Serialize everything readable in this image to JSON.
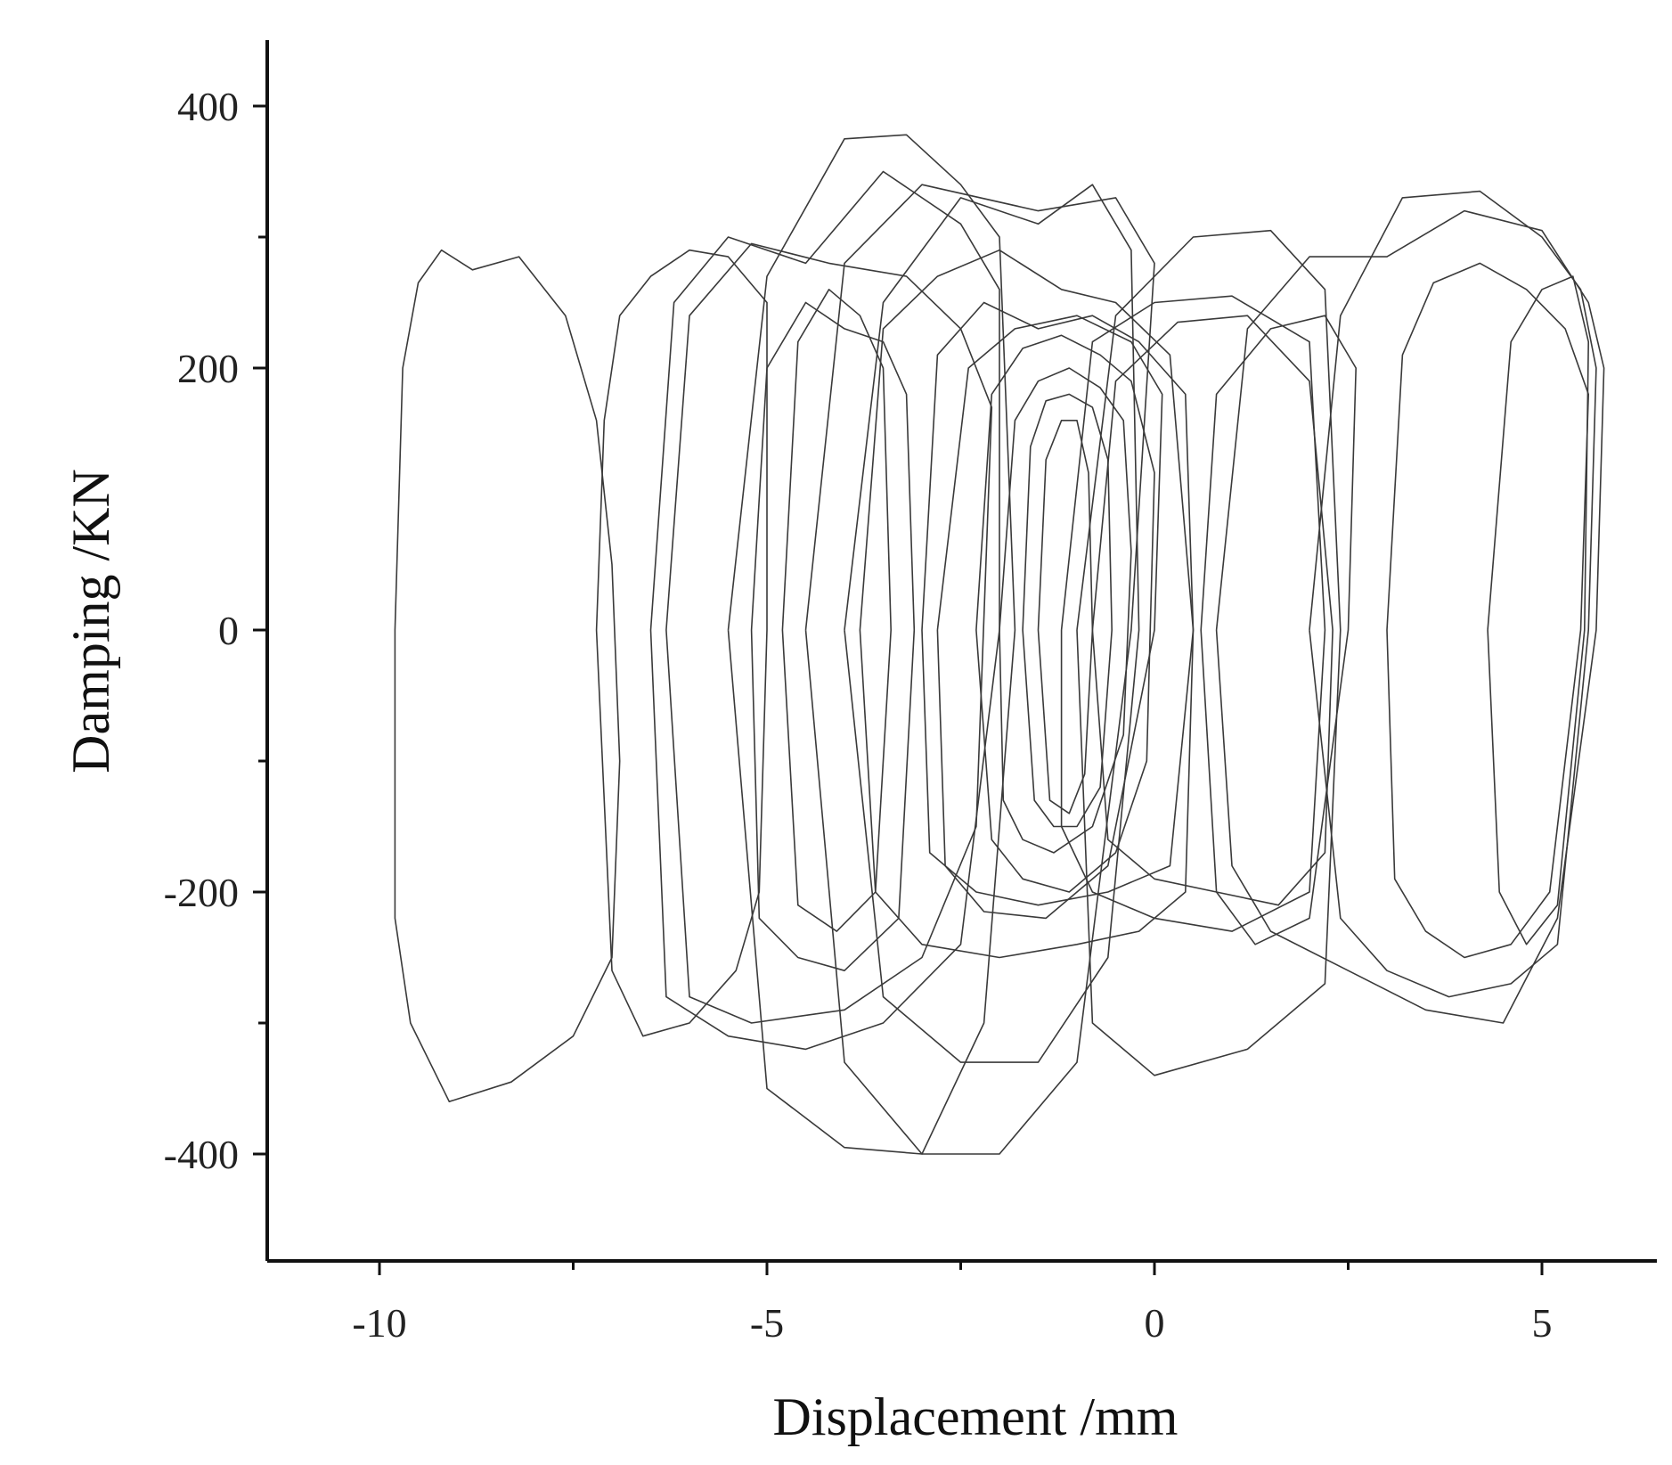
{
  "chart_data": {
    "type": "line",
    "title": "",
    "xlabel": "Displacement /mm",
    "ylabel": "Damping /KN",
    "xlim": [
      -12,
      6.5
    ],
    "ylim": [
      -475,
      450
    ],
    "x_ticks": [
      -10,
      -5,
      0,
      5
    ],
    "x_tick_labels": [
      "-10",
      "-5",
      "0",
      "5"
    ],
    "x_minor_ticks": [
      -7.5,
      -2.5,
      2.5
    ],
    "y_ticks": [
      400,
      200,
      0,
      -200,
      -400
    ],
    "y_tick_labels": [
      "400",
      "200",
      "0",
      "-200",
      "-400"
    ],
    "y_minor_ticks": [
      300,
      -100,
      -300
    ],
    "grid": false,
    "legend": "none",
    "line_color": "#3a3a3a",
    "series": [
      {
        "x": [
          -9.8,
          -9.7,
          -9.5,
          -9.2,
          -8.8,
          -8.2,
          -7.6,
          -7.2,
          -7.0,
          -6.9,
          -7.0,
          -7.5,
          -8.3,
          -9.1,
          -9.6,
          -9.8,
          -9.8
        ],
        "y": [
          0,
          200,
          265,
          290,
          275,
          285,
          240,
          160,
          50,
          -100,
          -250,
          -310,
          -345,
          -360,
          -300,
          -220,
          0
        ]
      },
      {
        "x": [
          -7.2,
          -7.1,
          -6.9,
          -6.5,
          -6.0,
          -5.5,
          -5.0,
          -5.0,
          -5.1,
          -5.4,
          -6.0,
          -6.6,
          -7.0,
          -7.2
        ],
        "y": [
          0,
          160,
          240,
          270,
          290,
          285,
          250,
          0,
          -200,
          -260,
          -300,
          -310,
          -260,
          0
        ]
      },
      {
        "x": [
          -6.5,
          -6.2,
          -5.5,
          -4.5,
          -3.5,
          -2.5,
          -2.0,
          -2.0,
          -2.5,
          -3.5,
          -4.5,
          -5.5,
          -6.3,
          -6.5
        ],
        "y": [
          0,
          250,
          300,
          280,
          350,
          310,
          260,
          0,
          -240,
          -300,
          -320,
          -310,
          -280,
          0
        ]
      },
      {
        "x": [
          -5.2,
          -5.0,
          -4.5,
          -4.0,
          -3.5,
          -3.2,
          -3.1,
          -3.3,
          -4.0,
          -4.6,
          -5.1,
          -5.2
        ],
        "y": [
          0,
          200,
          250,
          230,
          220,
          180,
          0,
          -220,
          -260,
          -250,
          -220,
          0
        ]
      },
      {
        "x": [
          -4.8,
          -4.6,
          -4.2,
          -3.8,
          -3.5,
          -3.4,
          -3.6,
          -4.1,
          -4.6,
          -4.8
        ],
        "y": [
          0,
          220,
          260,
          240,
          200,
          0,
          -200,
          -230,
          -210,
          0
        ]
      },
      {
        "x": [
          -3.8,
          -3.5,
          -2.8,
          -2.0,
          -1.2,
          -0.5,
          0.2,
          0.5,
          0.4,
          -0.2,
          -1.0,
          -2.0,
          -3.0,
          -3.6,
          -3.8
        ],
        "y": [
          0,
          230,
          270,
          290,
          260,
          250,
          210,
          0,
          -200,
          -230,
          -240,
          -250,
          -240,
          -200,
          0
        ]
      },
      {
        "x": [
          -3.0,
          -2.8,
          -2.2,
          -1.5,
          -0.8,
          -0.2,
          0.4,
          0.5,
          0.2,
          -0.6,
          -1.5,
          -2.3,
          -2.9,
          -3.0
        ],
        "y": [
          0,
          210,
          250,
          230,
          240,
          220,
          180,
          0,
          -180,
          -200,
          -210,
          -200,
          -170,
          0
        ]
      },
      {
        "x": [
          -2.3,
          -2.1,
          -1.7,
          -1.2,
          -0.7,
          -0.3,
          0.0,
          -0.1,
          -0.5,
          -1.1,
          -1.7,
          -2.1,
          -2.3
        ],
        "y": [
          0,
          180,
          215,
          225,
          210,
          190,
          120,
          -100,
          -170,
          -200,
          -190,
          -160,
          0
        ]
      },
      {
        "x": [
          -2.0,
          -1.8,
          -1.5,
          -1.1,
          -0.7,
          -0.4,
          -0.3,
          -0.4,
          -0.8,
          -1.3,
          -1.7,
          -1.95,
          -2.0
        ],
        "y": [
          0,
          160,
          190,
          200,
          185,
          160,
          60,
          -80,
          -150,
          -170,
          -160,
          -130,
          0
        ]
      },
      {
        "x": [
          -1.7,
          -1.6,
          -1.4,
          -1.1,
          -0.8,
          -0.6,
          -0.55,
          -0.7,
          -1.0,
          -1.3,
          -1.55,
          -1.7
        ],
        "y": [
          0,
          140,
          175,
          180,
          170,
          130,
          0,
          -120,
          -150,
          -150,
          -130,
          0
        ]
      },
      {
        "x": [
          -1.5,
          -1.4,
          -1.2,
          -1.0,
          -0.85,
          -0.8,
          -0.9,
          -1.1,
          -1.35,
          -1.5
        ],
        "y": [
          0,
          130,
          160,
          160,
          120,
          0,
          -110,
          -140,
          -130,
          0
        ]
      },
      {
        "x": [
          -1.2,
          -0.8,
          0.0,
          1.0,
          2.0,
          2.2,
          2.0,
          1.0,
          0.0,
          -0.8,
          -1.2,
          -1.2
        ],
        "y": [
          0,
          220,
          250,
          255,
          220,
          0,
          -200,
          -230,
          -220,
          -200,
          -150,
          0
        ]
      },
      {
        "x": [
          -0.8,
          -0.5,
          0.3,
          1.2,
          2.0,
          2.3,
          2.2,
          1.6,
          0.8,
          0.0,
          -0.6,
          -0.8
        ],
        "y": [
          0,
          190,
          235,
          240,
          190,
          0,
          -170,
          -210,
          -200,
          -190,
          -160,
          0
        ]
      },
      {
        "x": [
          -4.0,
          -3.5,
          -2.5,
          -1.5,
          -0.8,
          -0.3,
          -0.2,
          -0.6,
          -1.5,
          -2.5,
          -3.5,
          -4.0
        ],
        "y": [
          0,
          250,
          330,
          310,
          340,
          290,
          0,
          -250,
          -330,
          -330,
          -280,
          0
        ]
      },
      {
        "x": [
          -5.5,
          -5.0,
          -4.0,
          -3.2,
          -2.5,
          -2.0,
          -1.8,
          -2.2,
          -3.0,
          -4.0,
          -5.0,
          -5.5
        ],
        "y": [
          0,
          270,
          375,
          378,
          340,
          300,
          0,
          -300,
          -400,
          -395,
          -350,
          0
        ]
      },
      {
        "x": [
          -4.5,
          -4.0,
          -3.0,
          -1.5,
          -0.5,
          0.0,
          -0.3,
          -1.0,
          -2.0,
          -3.0,
          -4.0,
          -4.5
        ],
        "y": [
          0,
          280,
          340,
          320,
          330,
          280,
          0,
          -330,
          -400,
          -400,
          -330,
          0
        ]
      },
      {
        "x": [
          -1.0,
          -0.5,
          0.5,
          1.5,
          2.2,
          2.4,
          2.2,
          1.2,
          0.0,
          -0.8,
          -1.0
        ],
        "y": [
          0,
          240,
          300,
          305,
          260,
          0,
          -270,
          -320,
          -340,
          -300,
          0
        ]
      },
      {
        "x": [
          0.6,
          0.8,
          1.5,
          2.2,
          2.6,
          2.5,
          2.0,
          1.3,
          0.8,
          0.6
        ],
        "y": [
          0,
          180,
          230,
          240,
          200,
          0,
          -220,
          -240,
          -200,
          0
        ]
      },
      {
        "x": [
          0.8,
          1.2,
          2.0,
          3.0,
          4.0,
          5.0,
          5.6,
          5.8,
          5.7,
          5.2,
          4.5,
          3.5,
          2.5,
          1.5,
          1.0,
          0.8
        ],
        "y": [
          0,
          230,
          285,
          285,
          320,
          305,
          250,
          200,
          0,
          -220,
          -300,
          -290,
          -260,
          -230,
          -180,
          0
        ]
      },
      {
        "x": [
          2.0,
          2.4,
          3.2,
          4.2,
          5.0,
          5.5,
          5.7,
          5.6,
          5.2,
          4.6,
          3.8,
          3.0,
          2.4,
          2.0
        ],
        "y": [
          0,
          240,
          330,
          335,
          300,
          260,
          200,
          0,
          -240,
          -270,
          -280,
          -260,
          -220,
          0
        ]
      },
      {
        "x": [
          3.0,
          3.2,
          3.6,
          4.2,
          4.8,
          5.3,
          5.6,
          5.5,
          5.1,
          4.6,
          4.0,
          3.5,
          3.1,
          3.0
        ],
        "y": [
          0,
          210,
          265,
          280,
          260,
          230,
          180,
          0,
          -200,
          -240,
          -250,
          -230,
          -190,
          0
        ]
      },
      {
        "x": [
          4.3,
          4.6,
          5.0,
          5.4,
          5.6,
          5.55,
          5.2,
          4.8,
          4.45,
          4.3
        ],
        "y": [
          0,
          220,
          260,
          270,
          220,
          0,
          -210,
          -240,
          -200,
          0
        ]
      },
      {
        "x": [
          -2.8,
          -2.4,
          -1.8,
          -1.0,
          -0.3,
          0.1,
          0.0,
          -0.6,
          -1.4,
          -2.2,
          -2.7,
          -2.8
        ],
        "y": [
          0,
          200,
          230,
          240,
          220,
          180,
          0,
          -180,
          -220,
          -215,
          -180,
          0
        ]
      },
      {
        "x": [
          -6.3,
          -6.0,
          -5.2,
          -4.2,
          -3.2,
          -2.5,
          -2.1,
          -2.3,
          -3.0,
          -4.0,
          -5.2,
          -6.0,
          -6.3
        ],
        "y": [
          0,
          240,
          295,
          280,
          270,
          230,
          170,
          -150,
          -250,
          -290,
          -300,
          -280,
          0
        ]
      }
    ]
  }
}
